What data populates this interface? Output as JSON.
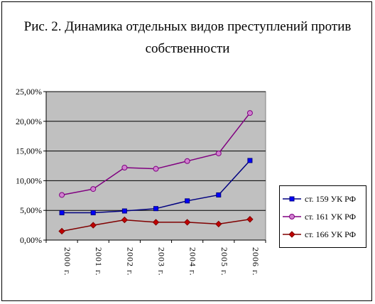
{
  "chart_data": {
    "type": "line",
    "title_line1": "Рис. 2. Динамика отдельных видов преступлений против",
    "title_line2": "собственности",
    "categories": [
      "2000 г.",
      "2001 г.",
      "2002 г.",
      "2003 г.",
      "2004 г.",
      "2005 г.",
      "2006 г."
    ],
    "ylim": [
      0,
      25
    ],
    "yticks": [
      "0,00%",
      "5,00%",
      "10,00%",
      "15,00%",
      "20,00%",
      "25,00%"
    ],
    "grid": true,
    "legend_position": "right",
    "series": [
      {
        "name": "ст. 159 УК РФ",
        "color": "#000080",
        "marker": "square",
        "values": [
          4.6,
          4.6,
          4.9,
          5.3,
          6.6,
          7.6,
          13.4
        ]
      },
      {
        "name": "ст. 161 УК РФ",
        "color": "#800080",
        "marker": "circle",
        "values": [
          7.6,
          8.6,
          12.2,
          12.0,
          13.3,
          14.6,
          21.4
        ]
      },
      {
        "name": "ст. 166 УК РФ",
        "color": "#800000",
        "marker": "diamond",
        "values": [
          1.5,
          2.5,
          3.4,
          3.0,
          3.0,
          2.7,
          3.5
        ]
      }
    ]
  }
}
